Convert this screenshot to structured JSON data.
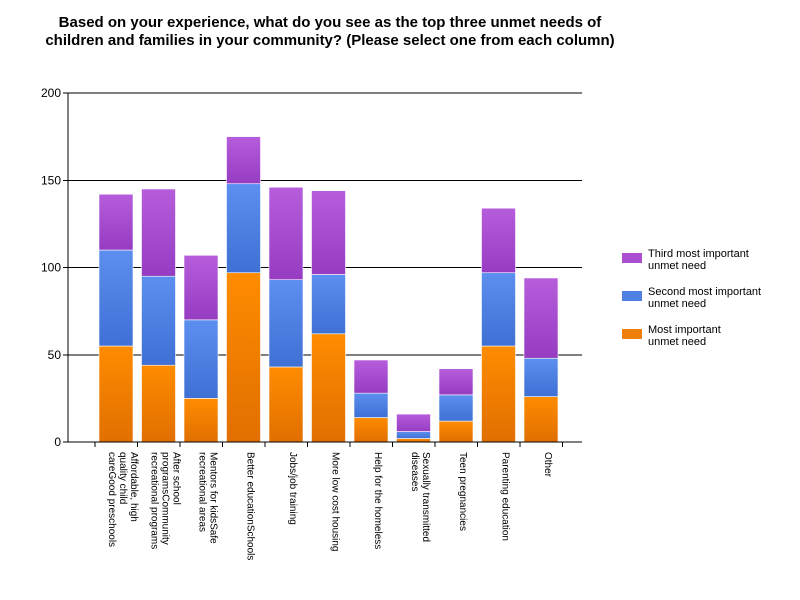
{
  "chart_data": {
    "type": "bar",
    "stacked": true,
    "title": "Based on your experience, what do you see as the top three unmet needs of children and families in your community? (Please select one from each column)",
    "xlabel": "",
    "ylabel": "",
    "ylim": [
      0,
      200
    ],
    "yticks": [
      "0",
      "50",
      "100",
      "150",
      "200"
    ],
    "grid": true,
    "legend_position": "right",
    "categories": [
      "Affordable, high quality child careGood preschools",
      "After school programsCommunity recreational programs",
      "Mentors for kidsSafe recreational areas",
      "Better educationSchools",
      "Jobs/job training",
      "More low cost housing",
      "Help for the homeless",
      "Sexually transmitted diseases",
      "Teen pregnancies",
      "Parenting education",
      "Other"
    ],
    "category_lines": [
      [
        "Affordable, high",
        "quality child",
        "careGood preschools"
      ],
      [
        "After school",
        "programsCommunity",
        "recreational programs"
      ],
      [
        "Mentors for kidsSafe",
        "recreational areas"
      ],
      [
        "Better educationSchools"
      ],
      [
        "Jobs/job training"
      ],
      [
        "More low cost housing"
      ],
      [
        "Help for the homeless"
      ],
      [
        "Sexually transmitted",
        "diseases"
      ],
      [
        "Teen pregnancies"
      ],
      [
        "Parenting education"
      ],
      [
        "Other"
      ]
    ],
    "series": [
      {
        "name": "Most important unmet need",
        "color": "#f07f09",
        "values": [
          55,
          44,
          25,
          97,
          43,
          62,
          14,
          2,
          12,
          55,
          26
        ]
      },
      {
        "name": "Second most important unmet need",
        "color": "#4f81e3",
        "values": [
          55,
          51,
          45,
          51,
          50,
          34,
          14,
          4,
          15,
          42,
          22
        ]
      },
      {
        "name": "Third most important unmet need",
        "color": "#a94fd0",
        "values": [
          32,
          50,
          37,
          27,
          53,
          48,
          19,
          10,
          15,
          37,
          46
        ]
      }
    ],
    "legend": [
      {
        "label_lines": [
          "Third most important",
          "unmet need"
        ],
        "color": "#a94fd0"
      },
      {
        "label_lines": [
          "Second most important",
          "unmet need"
        ],
        "color": "#4f81e3"
      },
      {
        "label_lines": [
          "Most important",
          "unmet need"
        ],
        "color": "#f07f09"
      }
    ]
  }
}
